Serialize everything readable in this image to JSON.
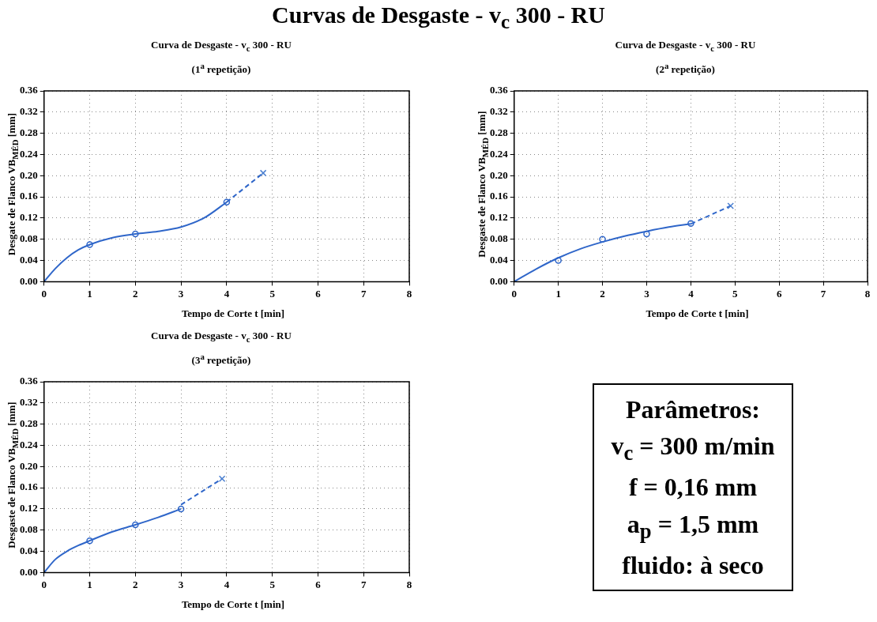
{
  "chart_data": [
    {
      "type": "other",
      "title": "Curvas de Desgaste - v$_{c}$ 300 - RU"
    },
    {
      "type": "scatter",
      "title": "Curva de Desgaste - v$_{c}$ 300 - RU",
      "subtitle": "(1$^{a}$ repetição)",
      "xlabel": "Tempo de Corte t [min]",
      "ylabel": "Desgate de Flanco VB$_{MÉD}$ [mm]",
      "xlim": [
        0,
        8
      ],
      "xticks": [
        0,
        1,
        2,
        3,
        4,
        5,
        6,
        7,
        8
      ],
      "ylim": [
        0,
        0.36
      ],
      "yticks": [
        {
          "value": 0,
          "label": "0.00"
        },
        {
          "value": 0.04,
          "label": "0.04"
        },
        {
          "value": 0.08,
          "label": "0.08"
        },
        {
          "value": 0.12,
          "label": "0.12"
        },
        {
          "value": 0.16,
          "label": "0.16"
        },
        {
          "value": 0.2,
          "label": "0.20"
        },
        {
          "value": 0.24,
          "label": "0.24"
        },
        {
          "value": 0.28,
          "label": "0.28"
        },
        {
          "value": 0.32,
          "label": "0.32"
        },
        {
          "value": 0.36,
          "label": "0.36"
        }
      ],
      "grid": true,
      "legend": false,
      "series": [
        {
          "type": "line",
          "color": "#2f66c9",
          "marker": "none",
          "line_style": "solid",
          "x": [
            0,
            0.25,
            0.5,
            0.75,
            1,
            1.5,
            2,
            2.5,
            3,
            3.5,
            4
          ],
          "values": [
            0,
            0.025,
            0.045,
            0.06,
            0.07,
            0.083,
            0.09,
            0.095,
            0.103,
            0.12,
            0.15
          ]
        },
        {
          "type": "scatter",
          "color": "#2f66c9",
          "marker": "circle",
          "x": [
            1,
            2,
            4
          ],
          "values": [
            0.07,
            0.09,
            0.15
          ]
        },
        {
          "type": "line",
          "color": "#2f66c9",
          "marker": "none",
          "line_style": "dashed",
          "x": [
            4,
            4.8
          ],
          "values": [
            0.15,
            0.205
          ]
        },
        {
          "type": "scatter",
          "color": "#4a7fd0",
          "marker": "cross",
          "x": [
            4.8
          ],
          "values": [
            0.205
          ]
        }
      ]
    },
    {
      "type": "scatter",
      "title": "Curva de Desgaste - v$_{c}$ 300 - RU",
      "subtitle": "(2$^{a}$ repetição)",
      "xlabel": "Tempo de Corte t [min]",
      "ylabel": "Desgaste de Flanco VB$_{MÉD}$ [mm]",
      "xlim": [
        0,
        8
      ],
      "xticks": [
        0,
        1,
        2,
        3,
        4,
        5,
        6,
        7,
        8
      ],
      "ylim": [
        0,
        0.36
      ],
      "yticks": [
        {
          "value": 0,
          "label": "0.00"
        },
        {
          "value": 0.04,
          "label": "0.04"
        },
        {
          "value": 0.08,
          "label": "0.08"
        },
        {
          "value": 0.12,
          "label": "0.12"
        },
        {
          "value": 0.16,
          "label": "0.16"
        },
        {
          "value": 0.2,
          "label": "0.20"
        },
        {
          "value": 0.24,
          "label": "0.24"
        },
        {
          "value": 0.28,
          "label": "0.28"
        },
        {
          "value": 0.32,
          "label": "0.32"
        },
        {
          "value": 0.36,
          "label": "0.36"
        }
      ],
      "grid": true,
      "legend": false,
      "series": [
        {
          "type": "line",
          "color": "#2f66c9",
          "marker": "none",
          "line_style": "solid",
          "x": [
            0,
            0.5,
            1,
            1.5,
            2,
            2.5,
            3,
            3.5,
            4
          ],
          "values": [
            0,
            0.024,
            0.045,
            0.062,
            0.075,
            0.086,
            0.095,
            0.103,
            0.109
          ]
        },
        {
          "type": "scatter",
          "color": "#2f66c9",
          "marker": "circle",
          "x": [
            1,
            2,
            3,
            4
          ],
          "values": [
            0.04,
            0.08,
            0.09,
            0.11
          ]
        },
        {
          "type": "line",
          "color": "#2f66c9",
          "marker": "none",
          "line_style": "dashed",
          "x": [
            4,
            4.9
          ],
          "values": [
            0.109,
            0.143
          ]
        },
        {
          "type": "scatter",
          "color": "#4a7fd0",
          "marker": "cross",
          "x": [
            4.9
          ],
          "values": [
            0.143
          ]
        }
      ]
    },
    {
      "type": "scatter",
      "title": "Curva de Desgaste - v$_{c}$ 300 - RU",
      "subtitle": "(3$^{a}$ repetição)",
      "xlabel": "Tempo de Corte t [min]",
      "ylabel": "Desgaste de Flanco VB$_{MÉD}$ [mm]",
      "xlim": [
        0,
        8
      ],
      "xticks": [
        0,
        1,
        2,
        3,
        4,
        5,
        6,
        7,
        8
      ],
      "ylim": [
        0,
        0.36
      ],
      "yticks": [
        {
          "value": 0,
          "label": "0.00"
        },
        {
          "value": 0.04,
          "label": "0.04"
        },
        {
          "value": 0.08,
          "label": "0.08"
        },
        {
          "value": 0.12,
          "label": "0.12"
        },
        {
          "value": 0.16,
          "label": "0.16"
        },
        {
          "value": 0.2,
          "label": "0.20"
        },
        {
          "value": 0.24,
          "label": "0.24"
        },
        {
          "value": 0.28,
          "label": "0.28"
        },
        {
          "value": 0.32,
          "label": "0.32"
        },
        {
          "value": 0.36,
          "label": "0.36"
        }
      ],
      "grid": true,
      "legend": false,
      "series": [
        {
          "type": "line",
          "color": "#2f66c9",
          "marker": "none",
          "line_style": "solid",
          "x": [
            0,
            0.25,
            0.5,
            0.75,
            1,
            1.5,
            2,
            2.5,
            3
          ],
          "values": [
            0,
            0.025,
            0.04,
            0.051,
            0.06,
            0.077,
            0.09,
            0.104,
            0.12
          ]
        },
        {
          "type": "scatter",
          "color": "#2f66c9",
          "marker": "circle",
          "x": [
            1,
            2,
            3
          ],
          "values": [
            0.06,
            0.09,
            0.12
          ]
        },
        {
          "type": "line",
          "color": "#2f66c9",
          "marker": "none",
          "line_style": "dashed",
          "x": [
            3,
            3.9
          ],
          "values": [
            0.128,
            0.177
          ]
        },
        {
          "type": "scatter",
          "color": "#4a7fd0",
          "marker": "cross",
          "x": [
            3.9
          ],
          "values": [
            0.177
          ]
        }
      ]
    },
    {
      "type": "other",
      "title": "Parâmetros:",
      "annotations": [
        "v$_{c}$ = 300 m/min",
        "f = 0,16 mm",
        "a$_{p}$ = 1,5 mm",
        "fluido: à seco"
      ]
    }
  ]
}
